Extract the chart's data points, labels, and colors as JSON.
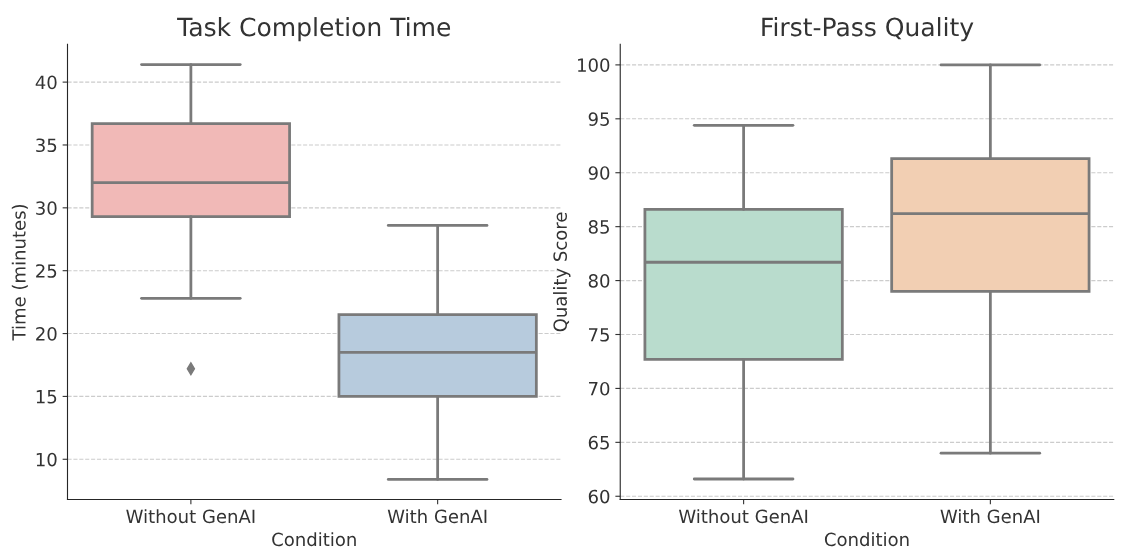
{
  "chart_data": [
    {
      "type": "box",
      "title": "Task Completion Time",
      "xlabel": "Condition",
      "ylabel": "Time (minutes)",
      "categories": [
        "Without GenAI",
        "With GenAI"
      ],
      "boxes": [
        {
          "low": 22.8,
          "q1": 29.3,
          "median": 32.0,
          "q3": 36.7,
          "high": 41.4,
          "outliers": [
            17.2
          ]
        },
        {
          "low": 8.4,
          "q1": 15.0,
          "median": 18.5,
          "q3": 21.5,
          "high": 28.6
        }
      ],
      "colors": [
        "#f1b9b7",
        "#b7cbdd"
      ],
      "ylim": [
        6.8,
        43.0
      ],
      "yticks": [
        10,
        15,
        20,
        25,
        30,
        35,
        40
      ],
      "grid": "y"
    },
    {
      "type": "box",
      "title": "First-Pass Quality",
      "xlabel": "Condition",
      "ylabel": "Quality Score",
      "categories": [
        "Without GenAI",
        "With GenAI"
      ],
      "boxes": [
        {
          "low": 61.6,
          "q1": 72.7,
          "median": 81.7,
          "q3": 86.6,
          "high": 94.4
        },
        {
          "low": 64.0,
          "q1": 79.0,
          "median": 86.2,
          "q3": 91.3,
          "high": 100.0
        }
      ],
      "colors": [
        "#b9dccd",
        "#f2cfb3"
      ],
      "ylim": [
        59.7,
        101.9
      ],
      "yticks": [
        60,
        65,
        70,
        75,
        80,
        85,
        90,
        95,
        100
      ],
      "grid": "y"
    }
  ]
}
